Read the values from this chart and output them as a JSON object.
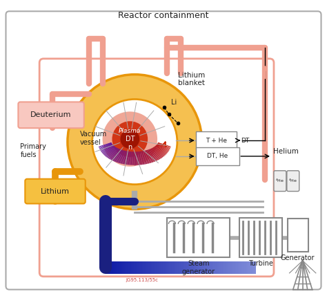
{
  "title": "Reactor containment",
  "bg_color": "#ffffff",
  "colors": {
    "text": "#222222",
    "salmon": "#f0a090",
    "orange": "#e8960a",
    "orange_light": "#f5b830",
    "orange_fill": "#f5c050",
    "blue_dark": "#1a2080",
    "blue_light": "#80c8f0",
    "red_dark": "#990000",
    "red_mid": "#cc2200",
    "red_light": "#e05030",
    "purple": "#6030a0",
    "gray": "#888888",
    "gray_light": "#aaaaaa",
    "gray_box": "#dddddd",
    "white": "#ffffff",
    "pink_box": "#f8c8c0",
    "gold_box": "#f5c040",
    "ref_red": "#cc4444"
  },
  "labels": {
    "title": "Reactor containment",
    "deuterium": "Deuterium",
    "lithium": "Lithium",
    "primary_fuels": "Primary\nfuels",
    "vacuum_vessel": "Vacuum\nvessel",
    "plasma": "Plasma",
    "plasma_dt": "DT",
    "plasma_n": "n",
    "lithium_blanket": "Lithium\nblanket",
    "li": "Li",
    "t_he": "T + He",
    "dt": "DT",
    "dt_he": "DT, He",
    "helium": "Helium",
    "steam_generator": "Steam\ngenerator",
    "turbine": "Turbine",
    "generator": "Generator",
    "ref": "JG95.113/55c"
  }
}
